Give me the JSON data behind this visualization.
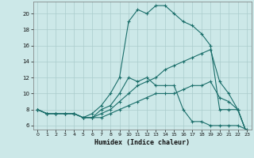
{
  "xlabel": "Humidex (Indice chaleur)",
  "background_color": "#cce8e8",
  "grid_color": "#aacccc",
  "line_color": "#1a6e6a",
  "xlim": [
    -0.5,
    23.5
  ],
  "ylim": [
    5.5,
    21.5
  ],
  "xticks": [
    0,
    1,
    2,
    3,
    4,
    5,
    6,
    7,
    8,
    9,
    10,
    11,
    12,
    13,
    14,
    15,
    16,
    17,
    18,
    19,
    20,
    21,
    22,
    23
  ],
  "yticks": [
    6,
    8,
    10,
    12,
    14,
    16,
    18,
    20
  ],
  "line1_x": [
    0,
    1,
    2,
    3,
    4,
    5,
    6,
    7,
    8,
    9,
    10,
    11,
    12,
    13,
    14,
    15,
    16,
    17,
    18,
    19,
    20,
    21,
    22,
    23
  ],
  "line1_y": [
    8,
    7.5,
    7.5,
    7.5,
    7.5,
    7,
    7,
    8,
    8.5,
    10,
    12,
    11.5,
    12,
    11,
    11,
    11,
    8,
    6.5,
    6.5,
    6,
    6,
    6,
    6,
    5.5
  ],
  "line2_x": [
    0,
    1,
    2,
    3,
    4,
    5,
    6,
    7,
    8,
    9,
    10,
    11,
    12,
    13,
    14,
    15,
    16,
    17,
    18,
    19,
    20,
    21,
    22,
    23
  ],
  "line2_y": [
    8,
    7.5,
    7.5,
    7.5,
    7.5,
    7,
    7.5,
    8.5,
    10,
    12,
    19,
    20.5,
    20,
    21,
    21,
    20,
    19,
    18.5,
    17.5,
    16,
    8,
    8,
    8,
    5
  ],
  "line3_x": [
    0,
    1,
    2,
    3,
    4,
    5,
    6,
    7,
    8,
    9,
    10,
    11,
    12,
    13,
    14,
    15,
    16,
    17,
    18,
    19,
    20,
    21,
    22,
    23
  ],
  "line3_y": [
    8,
    7.5,
    7.5,
    7.5,
    7.5,
    7,
    7,
    7.5,
    8,
    9,
    10,
    11,
    11.5,
    12,
    13,
    13.5,
    14,
    14.5,
    15,
    15.5,
    11.5,
    10,
    8,
    5
  ],
  "line4_x": [
    0,
    1,
    2,
    3,
    4,
    5,
    6,
    7,
    8,
    9,
    10,
    11,
    12,
    13,
    14,
    15,
    16,
    17,
    18,
    19,
    20,
    21,
    22,
    23
  ],
  "line4_y": [
    8,
    7.5,
    7.5,
    7.5,
    7.5,
    7,
    7,
    7,
    7.5,
    8,
    8.5,
    9,
    9.5,
    10,
    10,
    10,
    10.5,
    11,
    11,
    11.5,
    9.5,
    9,
    8,
    5
  ]
}
